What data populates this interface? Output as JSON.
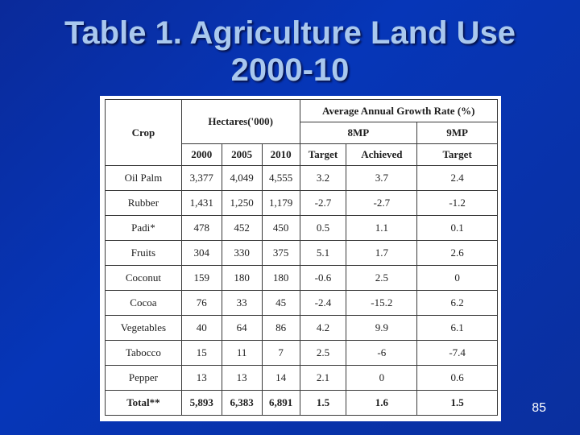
{
  "slide": {
    "title_line1": "Table 1. Agriculture Land Use",
    "title_line2": "2000-10",
    "page_number": "85"
  },
  "table": {
    "col_crop": "Crop",
    "col_hectares": "Hectares('000)",
    "col_growth": "Average Annual Growth Rate (%)",
    "col_8mp": "8MP",
    "col_9mp": "9MP",
    "sub_2000": "2000",
    "sub_2005": "2005",
    "sub_2010": "2010",
    "sub_target_8": "Target",
    "sub_achieved": "Achieved",
    "sub_target_9": "Target",
    "rows": [
      {
        "crop": "Oil Palm",
        "y2000": "3,377",
        "y2005": "4,049",
        "y2010": "4,555",
        "target8": "3.2",
        "achieved": "3.7",
        "target9": "2.4"
      },
      {
        "crop": "Rubber",
        "y2000": "1,431",
        "y2005": "1,250",
        "y2010": "1,179",
        "target8": "-2.7",
        "achieved": "-2.7",
        "target9": "-1.2"
      },
      {
        "crop": "Padi*",
        "y2000": "478",
        "y2005": "452",
        "y2010": "450",
        "target8": "0.5",
        "achieved": "1.1",
        "target9": "0.1"
      },
      {
        "crop": "Fruits",
        "y2000": "304",
        "y2005": "330",
        "y2010": "375",
        "target8": "5.1",
        "achieved": "1.7",
        "target9": "2.6"
      },
      {
        "crop": "Coconut",
        "y2000": "159",
        "y2005": "180",
        "y2010": "180",
        "target8": "-0.6",
        "achieved": "2.5",
        "target9": "0"
      },
      {
        "crop": "Cocoa",
        "y2000": "76",
        "y2005": "33",
        "y2010": "45",
        "target8": "-2.4",
        "achieved": "-15.2",
        "target9": "6.2"
      },
      {
        "crop": "Vegetables",
        "y2000": "40",
        "y2005": "64",
        "y2010": "86",
        "target8": "4.2",
        "achieved": "9.9",
        "target9": "6.1"
      },
      {
        "crop": "Tabocco",
        "y2000": "15",
        "y2005": "11",
        "y2010": "7",
        "target8": "2.5",
        "achieved": "-6",
        "target9": "-7.4"
      },
      {
        "crop": "Pepper",
        "y2000": "13",
        "y2005": "13",
        "y2010": "14",
        "target8": "2.1",
        "achieved": "0",
        "target9": "0.6"
      },
      {
        "crop": "Total**",
        "y2000": "5,893",
        "y2005": "6,383",
        "y2010": "6,891",
        "target8": "1.5",
        "achieved": "1.6",
        "target9": "1.5"
      }
    ]
  }
}
